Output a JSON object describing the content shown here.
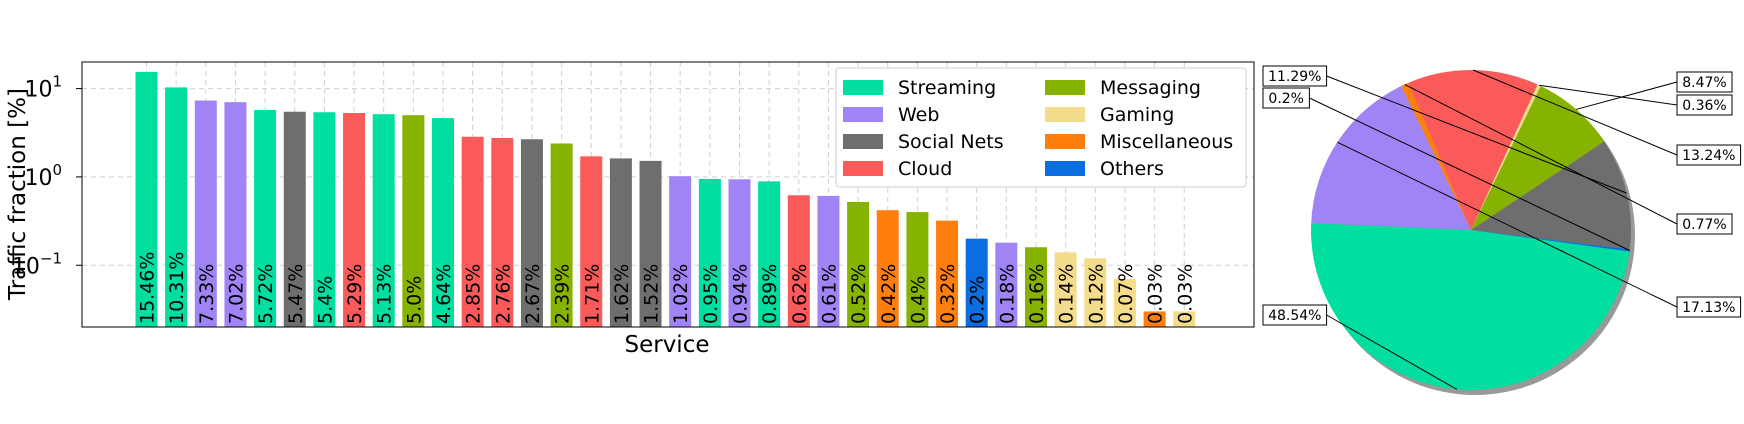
{
  "colors": {
    "Streaming": "#00dea0",
    "Web": "#a084f6",
    "Social Nets": "#6e6e6e",
    "Cloud": "#fa5a5a",
    "Messaging": "#86b300",
    "Gaming": "#f5dc8c",
    "Miscellaneous": "#ff7f0e",
    "Others": "#0a6ee0"
  },
  "chart_data": [
    {
      "type": "bar",
      "xlabel": "Service",
      "ylabel": "Traffic fraction [%]",
      "yscale": "log",
      "ylim": [
        0.02,
        20
      ],
      "yticks": [
        {
          "value": 10,
          "base": "10",
          "exp": "1"
        },
        {
          "value": 1,
          "base": "10",
          "exp": "0"
        },
        {
          "value": 0.1,
          "base": "10",
          "exp": "−1"
        }
      ],
      "grid": true,
      "legend_position": "top-right",
      "legend": [
        "Streaming",
        "Web",
        "Social Nets",
        "Cloud",
        "Messaging",
        "Gaming",
        "Miscellaneous",
        "Others"
      ],
      "bars": [
        {
          "value": 15.46,
          "label": "15.46%",
          "category": "Streaming"
        },
        {
          "value": 10.31,
          "label": "10.31%",
          "category": "Streaming"
        },
        {
          "value": 7.33,
          "label": "7.33%",
          "category": "Web"
        },
        {
          "value": 7.02,
          "label": "7.02%",
          "category": "Web"
        },
        {
          "value": 5.72,
          "label": "5.72%",
          "category": "Streaming"
        },
        {
          "value": 5.47,
          "label": "5.47%",
          "category": "Social Nets"
        },
        {
          "value": 5.4,
          "label": "5.4%",
          "category": "Streaming"
        },
        {
          "value": 5.29,
          "label": "5.29%",
          "category": "Cloud"
        },
        {
          "value": 5.13,
          "label": "5.13%",
          "category": "Streaming"
        },
        {
          "value": 5.0,
          "label": "5.0%",
          "category": "Messaging"
        },
        {
          "value": 4.64,
          "label": "4.64%",
          "category": "Streaming"
        },
        {
          "value": 2.85,
          "label": "2.85%",
          "category": "Cloud"
        },
        {
          "value": 2.76,
          "label": "2.76%",
          "category": "Cloud"
        },
        {
          "value": 2.67,
          "label": "2.67%",
          "category": "Social Nets"
        },
        {
          "value": 2.39,
          "label": "2.39%",
          "category": "Messaging"
        },
        {
          "value": 1.71,
          "label": "1.71%",
          "category": "Cloud"
        },
        {
          "value": 1.62,
          "label": "1.62%",
          "category": "Social Nets"
        },
        {
          "value": 1.52,
          "label": "1.52%",
          "category": "Social Nets"
        },
        {
          "value": 1.02,
          "label": "1.02%",
          "category": "Web"
        },
        {
          "value": 0.95,
          "label": "0.95%",
          "category": "Streaming"
        },
        {
          "value": 0.94,
          "label": "0.94%",
          "category": "Web"
        },
        {
          "value": 0.89,
          "label": "0.89%",
          "category": "Streaming"
        },
        {
          "value": 0.62,
          "label": "0.62%",
          "category": "Cloud"
        },
        {
          "value": 0.61,
          "label": "0.61%",
          "category": "Web"
        },
        {
          "value": 0.52,
          "label": "0.52%",
          "category": "Messaging"
        },
        {
          "value": 0.42,
          "label": "0.42%",
          "category": "Miscellaneous"
        },
        {
          "value": 0.4,
          "label": "0.4%",
          "category": "Messaging"
        },
        {
          "value": 0.32,
          "label": "0.32%",
          "category": "Miscellaneous"
        },
        {
          "value": 0.2,
          "label": "0.2%",
          "category": "Others"
        },
        {
          "value": 0.18,
          "label": "0.18%",
          "category": "Web"
        },
        {
          "value": 0.16,
          "label": "0.16%",
          "category": "Messaging"
        },
        {
          "value": 0.14,
          "label": "0.14%",
          "category": "Gaming"
        },
        {
          "value": 0.12,
          "label": "0.12%",
          "category": "Gaming"
        },
        {
          "value": 0.07,
          "label": "0.07%",
          "category": "Gaming"
        },
        {
          "value": 0.03,
          "label": "0.03%",
          "category": "Miscellaneous"
        },
        {
          "value": 0.03,
          "label": "0.03%",
          "category": "Gaming"
        }
      ]
    },
    {
      "type": "pie",
      "shadow": true,
      "slices": [
        {
          "category": "Social Nets",
          "value": 11.29,
          "label": "11.29%"
        },
        {
          "category": "Messaging",
          "value": 8.47,
          "label": "8.47%"
        },
        {
          "category": "Gaming",
          "value": 0.36,
          "label": "0.36%"
        },
        {
          "category": "Cloud",
          "value": 13.24,
          "label": "13.24%"
        },
        {
          "category": "Miscellaneous",
          "value": 0.77,
          "label": "0.77%"
        },
        {
          "category": "Web",
          "value": 17.13,
          "label": "17.13%"
        },
        {
          "category": "Streaming",
          "value": 48.54,
          "label": "48.54%"
        },
        {
          "category": "Others",
          "value": 0.2,
          "label": "0.2%"
        }
      ]
    }
  ]
}
